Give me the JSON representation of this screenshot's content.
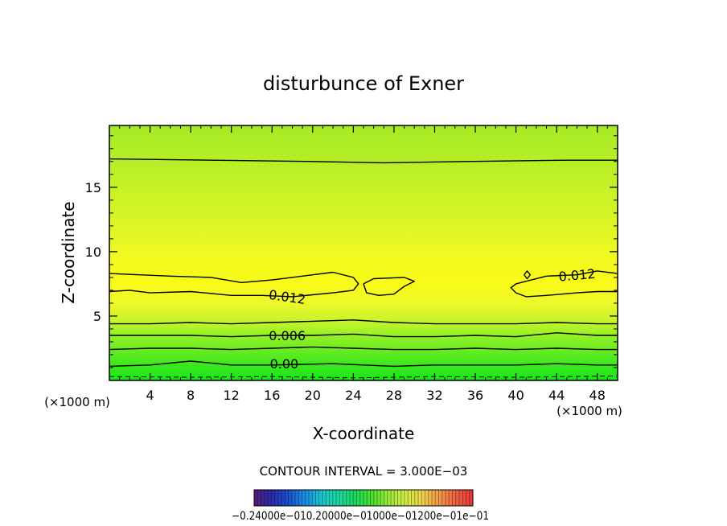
{
  "chart_data": {
    "type": "contour",
    "title": "disturbunce of Exner",
    "xlabel": "X-coordinate",
    "ylabel": "Z-coordinate",
    "x_unit_left": "(×1000 m)",
    "x_unit_right": "(×1000 m)",
    "xlim": [
      0,
      50
    ],
    "ylim": [
      0,
      19.8
    ],
    "x_ticks": [
      "4",
      "8",
      "12",
      "16",
      "20",
      "24",
      "28",
      "32",
      "36",
      "40",
      "44",
      "48"
    ],
    "y_ticks": [
      "5",
      "10",
      "15"
    ],
    "contour_interval_text": "CONTOUR INTERVAL = 3.000E−03",
    "contour_labels": [
      {
        "text": "0.00",
        "x": 17.2,
        "z": 1.3
      },
      {
        "text": "0.006",
        "x": 17.5,
        "z": 3.5
      },
      {
        "text": "0.012",
        "x": 17.5,
        "z": 6.5,
        "rotate": 8
      },
      {
        "text": "0.012",
        "x": 46.0,
        "z": 8.2,
        "rotate": -5
      }
    ],
    "contours": [
      {
        "level": 0.0,
        "points": [
          [
            0,
            1.1
          ],
          [
            4,
            1.2
          ],
          [
            8,
            1.5
          ],
          [
            12,
            1.2
          ],
          [
            16,
            1.2
          ],
          [
            22,
            1.3
          ],
          [
            28,
            1.1
          ],
          [
            32,
            1.2
          ],
          [
            36,
            1.2
          ],
          [
            40,
            1.2
          ],
          [
            44,
            1.3
          ],
          [
            48,
            1.2
          ],
          [
            50,
            1.2
          ]
        ]
      },
      {
        "level": 0.003,
        "points": [
          [
            0,
            2.4
          ],
          [
            4,
            2.5
          ],
          [
            8,
            2.5
          ],
          [
            12,
            2.4
          ],
          [
            16,
            2.5
          ],
          [
            20,
            2.6
          ],
          [
            24,
            2.5
          ],
          [
            28,
            2.4
          ],
          [
            32,
            2.4
          ],
          [
            36,
            2.5
          ],
          [
            40,
            2.4
          ],
          [
            44,
            2.5
          ],
          [
            48,
            2.4
          ],
          [
            50,
            2.4
          ]
        ]
      },
      {
        "level": 0.006,
        "points": [
          [
            0,
            3.5
          ],
          [
            4,
            3.5
          ],
          [
            8,
            3.5
          ],
          [
            12,
            3.4
          ],
          [
            16,
            3.5
          ],
          [
            20,
            3.5
          ],
          [
            24,
            3.6
          ],
          [
            28,
            3.4
          ],
          [
            32,
            3.4
          ],
          [
            36,
            3.5
          ],
          [
            40,
            3.4
          ],
          [
            44,
            3.7
          ],
          [
            48,
            3.5
          ],
          [
            50,
            3.5
          ]
        ]
      },
      {
        "level": 0.009,
        "points": [
          [
            0,
            4.4
          ],
          [
            4,
            4.4
          ],
          [
            8,
            4.5
          ],
          [
            12,
            4.4
          ],
          [
            16,
            4.5
          ],
          [
            20,
            4.6
          ],
          [
            24,
            4.7
          ],
          [
            28,
            4.5
          ],
          [
            32,
            4.4
          ],
          [
            36,
            4.4
          ],
          [
            40,
            4.4
          ],
          [
            44,
            4.5
          ],
          [
            48,
            4.4
          ],
          [
            50,
            4.4
          ]
        ]
      },
      {
        "level": 0.012,
        "points": [
          [
            0,
            8.3
          ],
          [
            3,
            8.2
          ],
          [
            6,
            8.1
          ],
          [
            10,
            8.0
          ],
          [
            13,
            7.6
          ],
          [
            16,
            7.8
          ],
          [
            20,
            8.2
          ],
          [
            22,
            8.4
          ],
          [
            24,
            8.0
          ],
          [
            24.5,
            7.5
          ],
          [
            24,
            7.0
          ],
          [
            22,
            6.8
          ],
          [
            18,
            6.5
          ],
          [
            15,
            6.6
          ],
          [
            12,
            6.6
          ],
          [
            8,
            6.9
          ],
          [
            4,
            6.8
          ],
          [
            2,
            7.0
          ],
          [
            0,
            6.9
          ]
        ]
      },
      {
        "level": 0.012,
        "points": [
          [
            25.0,
            7.5
          ],
          [
            26,
            7.9
          ],
          [
            29,
            8.0
          ],
          [
            30,
            7.7
          ],
          [
            29,
            7.3
          ],
          [
            28,
            6.7
          ],
          [
            26.5,
            6.6
          ],
          [
            25.3,
            6.8
          ],
          [
            25.0,
            7.5
          ]
        ]
      },
      {
        "level": 0.012,
        "points": [
          [
            50,
            8.3
          ],
          [
            48,
            8.5
          ],
          [
            46,
            8.2
          ],
          [
            43,
            8.1
          ],
          [
            41,
            7.7
          ],
          [
            40,
            7.5
          ],
          [
            39.5,
            7.2
          ],
          [
            40,
            6.8
          ],
          [
            41,
            6.5
          ],
          [
            43,
            6.6
          ],
          [
            46,
            6.8
          ],
          [
            48,
            6.9
          ],
          [
            50,
            6.9
          ]
        ]
      },
      {
        "level": 0.012,
        "points": [
          [
            40.8,
            8.2
          ],
          [
            41.1,
            8.5
          ],
          [
            41.4,
            8.2
          ],
          [
            41.1,
            7.9
          ],
          [
            40.8,
            8.2
          ]
        ]
      },
      {
        "level": 0.006,
        "points": [
          [
            0,
            17.2
          ],
          [
            10,
            17.1
          ],
          [
            20,
            17.0
          ],
          [
            27,
            16.9
          ],
          [
            35,
            17.0
          ],
          [
            45,
            17.1
          ],
          [
            50,
            17.1
          ]
        ]
      }
    ],
    "dashed_contours": [
      {
        "level": -0.003,
        "points": [
          [
            0,
            0.3
          ],
          [
            8,
            0.25
          ],
          [
            16,
            0.3
          ],
          [
            24,
            0.2
          ],
          [
            32,
            0.3
          ],
          [
            40,
            0.25
          ],
          [
            50,
            0.35
          ]
        ]
      }
    ],
    "field_bands": [
      {
        "z": 0.0,
        "color": "#18e818"
      },
      {
        "z": 1.2,
        "color": "#3ae81c"
      },
      {
        "z": 2.4,
        "color": "#6aec22"
      },
      {
        "z": 3.5,
        "color": "#96f026"
      },
      {
        "z": 4.5,
        "color": "#c2f42a"
      },
      {
        "z": 6.0,
        "color": "#eef82a"
      },
      {
        "z": 7.5,
        "color": "#fafa18"
      },
      {
        "z": 9.5,
        "color": "#f2fa20"
      },
      {
        "z": 12.0,
        "color": "#dcf624"
      },
      {
        "z": 15.0,
        "color": "#c6f226"
      },
      {
        "z": 17.5,
        "color": "#b2ee26"
      },
      {
        "z": 19.8,
        "color": "#a6ea24"
      }
    ],
    "colorbar": {
      "labels_text": "−0.24000e−010.20000e−01000e−01200e−01e−01",
      "colors": [
        "#5a1a7a",
        "#2a2aa8",
        "#1c4ed0",
        "#1c8ce0",
        "#1cc4d0",
        "#1cd8a0",
        "#1cd860",
        "#4ae030",
        "#9ae83a",
        "#d2ea44",
        "#eed24a",
        "#f09848",
        "#ee6040",
        "#e83838"
      ]
    }
  }
}
